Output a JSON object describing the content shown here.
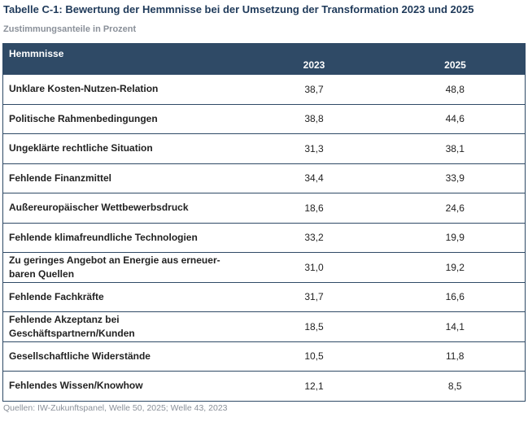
{
  "title": "Tabelle C-1: Bewertung der Hemmnisse bei der Umsetzung der Transformation 2023 und 2025",
  "subtitle": "Zustimmungsanteile in Prozent",
  "table": {
    "headers": [
      "Hemmnisse",
      "2023",
      "2025"
    ],
    "rows": [
      {
        "label": "Unklare Kosten-Nutzen-Relation",
        "v2023": "38,7",
        "v2025": "48,8"
      },
      {
        "label": "Politische Rahmenbedingungen",
        "v2023": "38,8",
        "v2025": "44,6"
      },
      {
        "label": "Ungeklärte rechtliche Situation",
        "v2023": "31,3",
        "v2025": "38,1"
      },
      {
        "label": "Fehlende Finanzmittel",
        "v2023": "34,4",
        "v2025": "33,9"
      },
      {
        "label": "Außereuropäischer Wettbewerbsdruck",
        "v2023": "18,6",
        "v2025": "24,6"
      },
      {
        "label": "Fehlende klimafreundliche Technologien",
        "v2023": "33,2",
        "v2025": "19,9"
      },
      {
        "label": "Zu geringes Angebot an Energie aus erneuer-\nbaren Quellen",
        "v2023": "31,0",
        "v2025": "19,2"
      },
      {
        "label": "Fehlende Fachkräfte",
        "v2023": "31,7",
        "v2025": "16,6"
      },
      {
        "label": "Fehlende Akzeptanz bei\nGeschäftspartnern/Kunden",
        "v2023": "18,5",
        "v2025": "14,1"
      },
      {
        "label": "Gesellschaftliche Widerstände",
        "v2023": "10,5",
        "v2025": "11,8"
      },
      {
        "label": "Fehlendes Wissen/Knowhow",
        "v2023": "12,1",
        "v2025": "8,5"
      }
    ]
  },
  "source": "Quellen: IW-Zukunftspanel, Welle 50, 2025; Welle 43, 2023",
  "colors": {
    "header_bg": "#2f4a66",
    "title": "#1f3a5a",
    "muted": "#8a9099"
  }
}
